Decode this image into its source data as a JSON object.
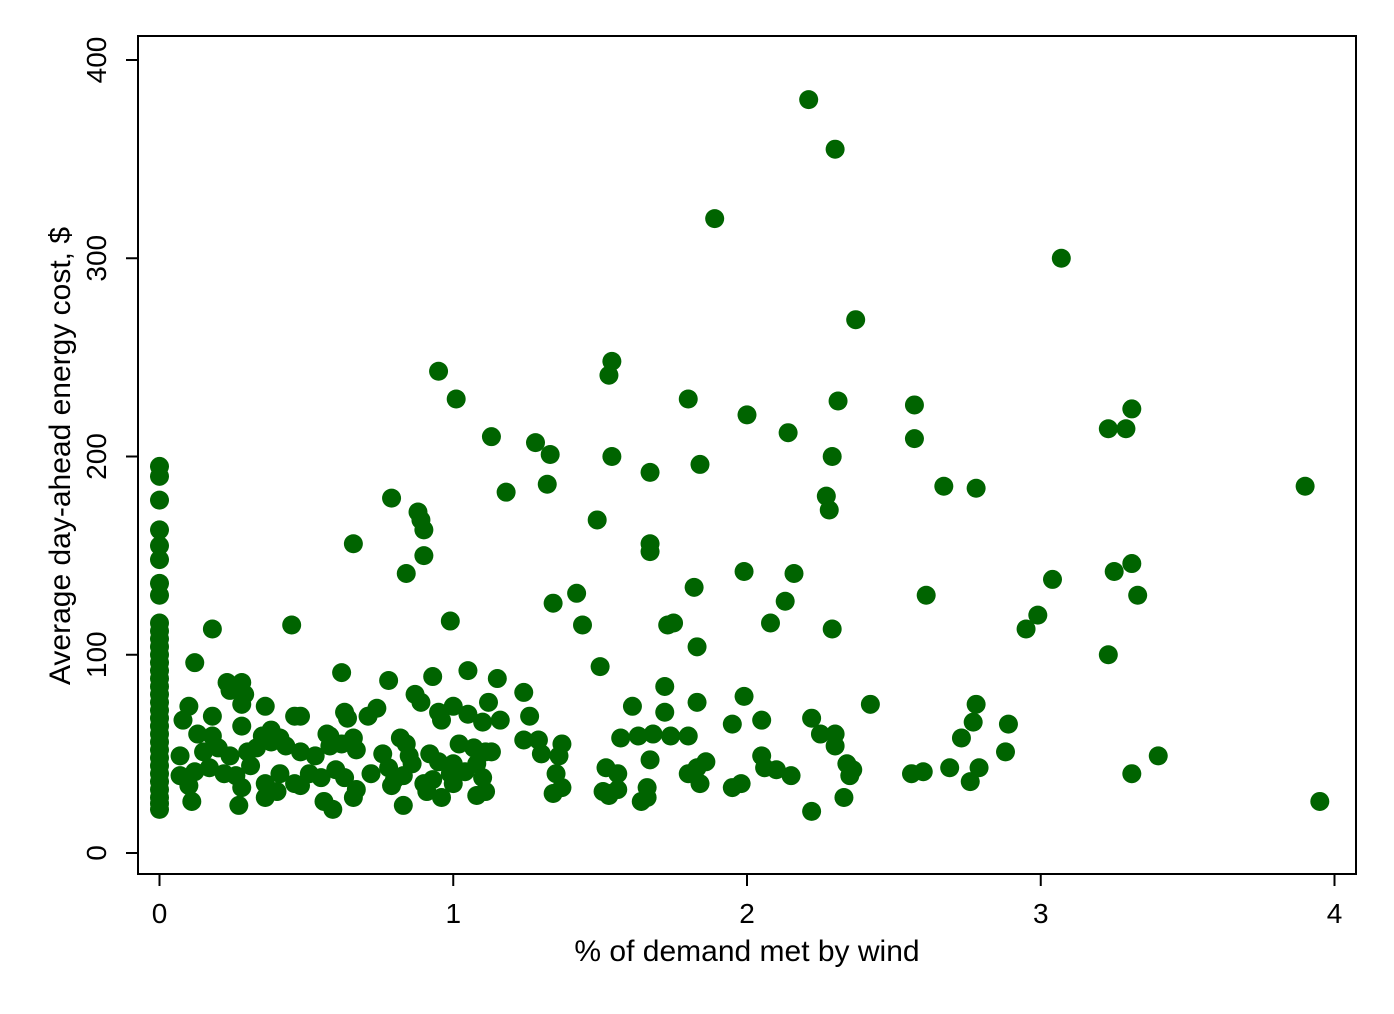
{
  "chart_data": {
    "type": "scatter",
    "title": "",
    "xlabel": "% of demand met by wind",
    "ylabel": "Average day-ahead energy cost, $",
    "xlim": [
      -0.08,
      4.06
    ],
    "ylim": [
      -10,
      412
    ],
    "xticks": [
      0,
      1,
      2,
      3,
      4
    ],
    "yticks": [
      0,
      100,
      200,
      300,
      400
    ],
    "xtick_labels": [
      "0",
      "1",
      "2",
      "3",
      "4"
    ],
    "ytick_labels": [
      "0",
      "100",
      "200",
      "300",
      "400"
    ],
    "grid": false,
    "legend": "none",
    "marker_color": "#006400",
    "points": [
      [
        0,
        195
      ],
      [
        0,
        190
      ],
      [
        0,
        178
      ],
      [
        0,
        163
      ],
      [
        0,
        155
      ],
      [
        0,
        148
      ],
      [
        0,
        136
      ],
      [
        0,
        130
      ],
      [
        0,
        116
      ],
      [
        0,
        112
      ],
      [
        0,
        108
      ],
      [
        0,
        104
      ],
      [
        0,
        100
      ],
      [
        0,
        96
      ],
      [
        0,
        92
      ],
      [
        0,
        88
      ],
      [
        0,
        84
      ],
      [
        0,
        80
      ],
      [
        0,
        76
      ],
      [
        0,
        72
      ],
      [
        0,
        68
      ],
      [
        0,
        64
      ],
      [
        0,
        60
      ],
      [
        0,
        56
      ],
      [
        0,
        52
      ],
      [
        0,
        48
      ],
      [
        0,
        44
      ],
      [
        0,
        40
      ],
      [
        0,
        36
      ],
      [
        0,
        32
      ],
      [
        0,
        28
      ],
      [
        0,
        25
      ],
      [
        0,
        22
      ],
      [
        2.21,
        380
      ],
      [
        2.3,
        355
      ],
      [
        1.89,
        320
      ],
      [
        3.07,
        300
      ],
      [
        2.37,
        269
      ],
      [
        1.54,
        248
      ],
      [
        0.95,
        243
      ],
      [
        1.53,
        241
      ],
      [
        1.01,
        229
      ],
      [
        1.8,
        229
      ],
      [
        2.31,
        228
      ],
      [
        2.57,
        226
      ],
      [
        3.31,
        224
      ],
      [
        2.0,
        221
      ],
      [
        3.23,
        214
      ],
      [
        3.29,
        214
      ],
      [
        2.14,
        212
      ],
      [
        1.13,
        210
      ],
      [
        2.57,
        209
      ],
      [
        1.28,
        207
      ],
      [
        1.33,
        201
      ],
      [
        1.54,
        200
      ],
      [
        2.29,
        200
      ],
      [
        1.84,
        196
      ],
      [
        1.67,
        192
      ],
      [
        1.18,
        182
      ],
      [
        1.32,
        186
      ],
      [
        2.67,
        185
      ],
      [
        2.78,
        184
      ],
      [
        3.9,
        185
      ],
      [
        0.79,
        179
      ],
      [
        2.27,
        180
      ],
      [
        2.28,
        173
      ],
      [
        0.88,
        172
      ],
      [
        0.89,
        168
      ],
      [
        0.9,
        163
      ],
      [
        1.49,
        168
      ],
      [
        0.66,
        156
      ],
      [
        1.67,
        156
      ],
      [
        1.67,
        152
      ],
      [
        0.9,
        150
      ],
      [
        2.16,
        141
      ],
      [
        0.84,
        141
      ],
      [
        1.99,
        142
      ],
      [
        3.25,
        142
      ],
      [
        3.31,
        146
      ],
      [
        3.04,
        138
      ],
      [
        1.82,
        134
      ],
      [
        1.42,
        131
      ],
      [
        2.61,
        130
      ],
      [
        3.33,
        130
      ],
      [
        1.34,
        126
      ],
      [
        2.13,
        127
      ],
      [
        2.99,
        120
      ],
      [
        2.95,
        113
      ],
      [
        0.99,
        117
      ],
      [
        1.44,
        115
      ],
      [
        1.73,
        115
      ],
      [
        1.75,
        116
      ],
      [
        2.08,
        116
      ],
      [
        2.29,
        113
      ],
      [
        0.45,
        115
      ],
      [
        0.18,
        113
      ],
      [
        1.83,
        104
      ],
      [
        3.23,
        100
      ],
      [
        1.5,
        94
      ],
      [
        0.12,
        96
      ],
      [
        0.62,
        91
      ],
      [
        0.93,
        89
      ],
      [
        1.05,
        92
      ],
      [
        1.15,
        88
      ],
      [
        0.78,
        87
      ],
      [
        0.23,
        86
      ],
      [
        0.28,
        86
      ],
      [
        0.24,
        82
      ],
      [
        0.29,
        80
      ],
      [
        1.24,
        81
      ],
      [
        1.72,
        84
      ],
      [
        0.87,
        80
      ],
      [
        0.89,
        76
      ],
      [
        1.83,
        76
      ],
      [
        2.42,
        75
      ],
      [
        2.78,
        75
      ],
      [
        1.99,
        79
      ],
      [
        0.1,
        74
      ],
      [
        0.28,
        75
      ],
      [
        0.36,
        74
      ],
      [
        0.74,
        73
      ],
      [
        0.63,
        71
      ],
      [
        0.64,
        68
      ],
      [
        0.71,
        69
      ],
      [
        0.95,
        71
      ],
      [
        0.96,
        67
      ],
      [
        1.0,
        74
      ],
      [
        1.05,
        70
      ],
      [
        1.1,
        66
      ],
      [
        1.12,
        76
      ],
      [
        1.16,
        67
      ],
      [
        1.26,
        69
      ],
      [
        1.61,
        74
      ],
      [
        1.72,
        71
      ],
      [
        1.95,
        65
      ],
      [
        2.05,
        67
      ],
      [
        2.22,
        68
      ],
      [
        2.77,
        66
      ],
      [
        2.89,
        65
      ],
      [
        0.08,
        67
      ],
      [
        0.18,
        69
      ],
      [
        0.38,
        62
      ],
      [
        0.46,
        69
      ],
      [
        0.48,
        69
      ],
      [
        0.28,
        64
      ],
      [
        0.13,
        60
      ],
      [
        0.18,
        59
      ],
      [
        0.35,
        59
      ],
      [
        0.41,
        58
      ],
      [
        0.58,
        59
      ],
      [
        0.66,
        58
      ],
      [
        0.57,
        60
      ],
      [
        0.82,
        58
      ],
      [
        0.84,
        55
      ],
      [
        1.02,
        55
      ],
      [
        1.07,
        53
      ],
      [
        1.11,
        51
      ],
      [
        1.24,
        57
      ],
      [
        1.29,
        57
      ],
      [
        1.37,
        55
      ],
      [
        1.3,
        50
      ],
      [
        1.57,
        58
      ],
      [
        1.63,
        59
      ],
      [
        1.68,
        60
      ],
      [
        1.74,
        59
      ],
      [
        1.8,
        59
      ],
      [
        2.05,
        49
      ],
      [
        2.25,
        60
      ],
      [
        2.3,
        60
      ],
      [
        2.3,
        54
      ],
      [
        2.34,
        45
      ],
      [
        2.73,
        58
      ],
      [
        2.88,
        51
      ],
      [
        3.4,
        49
      ],
      [
        0.07,
        49
      ],
      [
        0.15,
        51
      ],
      [
        0.2,
        53
      ],
      [
        0.24,
        49
      ],
      [
        0.3,
        51
      ],
      [
        0.33,
        53
      ],
      [
        0.38,
        56
      ],
      [
        0.43,
        54
      ],
      [
        0.48,
        51
      ],
      [
        0.53,
        49
      ],
      [
        0.58,
        54
      ],
      [
        0.62,
        55
      ],
      [
        0.67,
        52
      ],
      [
        0.76,
        50
      ],
      [
        0.85,
        49
      ],
      [
        0.92,
        50
      ],
      [
        0.95,
        46
      ],
      [
        1.0,
        45
      ],
      [
        1.08,
        45
      ],
      [
        1.13,
        51
      ],
      [
        1.36,
        49
      ],
      [
        1.86,
        46
      ],
      [
        1.52,
        43
      ],
      [
        1.56,
        40
      ],
      [
        1.67,
        47
      ],
      [
        0.07,
        39
      ],
      [
        0.12,
        41
      ],
      [
        0.17,
        43
      ],
      [
        0.22,
        40
      ],
      [
        0.26,
        39
      ],
      [
        0.31,
        44
      ],
      [
        0.36,
        35
      ],
      [
        0.41,
        40
      ],
      [
        0.46,
        35
      ],
      [
        0.51,
        40
      ],
      [
        0.55,
        38
      ],
      [
        0.6,
        42
      ],
      [
        0.63,
        38
      ],
      [
        0.72,
        40
      ],
      [
        0.78,
        43
      ],
      [
        0.8,
        37
      ],
      [
        0.83,
        39
      ],
      [
        0.86,
        45
      ],
      [
        0.9,
        35
      ],
      [
        0.93,
        37
      ],
      [
        0.99,
        40
      ],
      [
        1.04,
        41
      ],
      [
        1.1,
        38
      ],
      [
        1.35,
        40
      ],
      [
        1.8,
        40
      ],
      [
        1.83,
        43
      ],
      [
        2.06,
        43
      ],
      [
        2.1,
        42
      ],
      [
        2.15,
        39
      ],
      [
        2.35,
        39
      ],
      [
        2.36,
        42
      ],
      [
        2.56,
        40
      ],
      [
        2.6,
        41
      ],
      [
        2.69,
        43
      ],
      [
        2.76,
        36
      ],
      [
        2.79,
        43
      ],
      [
        3.31,
        40
      ],
      [
        1.98,
        35
      ],
      [
        0.1,
        34
      ],
      [
        0.28,
        33
      ],
      [
        0.48,
        34
      ],
      [
        0.67,
        32
      ],
      [
        0.79,
        34
      ],
      [
        0.91,
        31
      ],
      [
        1.0,
        35
      ],
      [
        1.11,
        31
      ],
      [
        1.34,
        30
      ],
      [
        1.37,
        33
      ],
      [
        1.51,
        31
      ],
      [
        1.53,
        29
      ],
      [
        1.56,
        32
      ],
      [
        1.66,
        33
      ],
      [
        1.66,
        28
      ],
      [
        1.84,
        35
      ],
      [
        1.95,
        33
      ],
      [
        0.11,
        26
      ],
      [
        0.27,
        24
      ],
      [
        0.36,
        28
      ],
      [
        0.4,
        31
      ],
      [
        0.56,
        26
      ],
      [
        0.59,
        22
      ],
      [
        0.66,
        28
      ],
      [
        0.83,
        24
      ],
      [
        0.96,
        28
      ],
      [
        1.08,
        29
      ],
      [
        1.53,
        30
      ],
      [
        1.64,
        26
      ],
      [
        2.33,
        28
      ],
      [
        2.22,
        21
      ],
      [
        3.95,
        26
      ]
    ]
  }
}
